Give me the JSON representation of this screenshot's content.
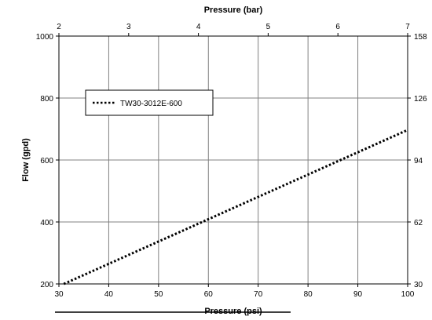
{
  "chart_data": {
    "type": "line",
    "title": "",
    "xlabel": "Pressure (psi)",
    "x2label": "Pressure (bar)",
    "ylabel": "Flow (gpd)",
    "xlim": [
      30,
      100
    ],
    "ylim": [
      200,
      1000
    ],
    "x2lim": [
      2,
      7
    ],
    "y2lim": [
      30,
      158
    ],
    "x_ticks": [
      "30",
      "40",
      "50",
      "60",
      "70",
      "80",
      "90",
      "100"
    ],
    "y_ticks": [
      "200",
      "400",
      "600",
      "800",
      "1000"
    ],
    "x2_ticks": [
      "2",
      "3",
      "4",
      "5",
      "6",
      "7"
    ],
    "y2_ticks": [
      "30",
      "62",
      "94",
      "126",
      "158"
    ],
    "grid": true,
    "legend_position": "upper-left",
    "series": [
      {
        "name": "TW30-3012E-600",
        "color": "#000000",
        "style": "dotted",
        "x": [
          31,
          100
        ],
        "y": [
          200,
          697
        ]
      }
    ]
  }
}
